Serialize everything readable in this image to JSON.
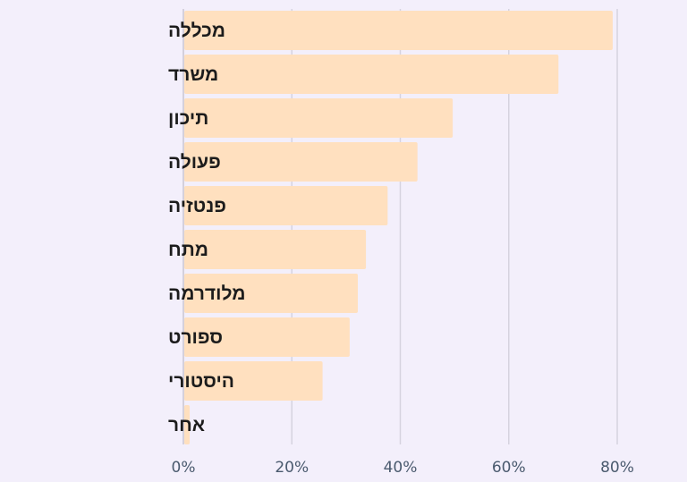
{
  "chart_data": {
    "type": "bar",
    "orientation": "horizontal",
    "categories": [
      "מכללה",
      "משרד",
      "תיכון",
      "פעולה",
      "פנטזיה",
      "מתח",
      "מלודרמה",
      "ספורט",
      "היסטורי",
      "אחר"
    ],
    "values": [
      79,
      69,
      49.5,
      43,
      37.5,
      33.5,
      32,
      30.5,
      25.5,
      1
    ],
    "xlim": [
      0,
      80
    ],
    "x_ticks": [
      0,
      20,
      40,
      60,
      80
    ],
    "x_tick_labels": [
      "0%",
      "20%",
      "40%",
      "60%",
      "80%"
    ],
    "grid": true,
    "colors": {
      "bar": "#ffe0bf",
      "grid": "#d6d3df",
      "axis": "#c9c6d2",
      "background": "#f3effb",
      "label": "#1c1c1c",
      "tick": "#4a5a6e"
    }
  }
}
